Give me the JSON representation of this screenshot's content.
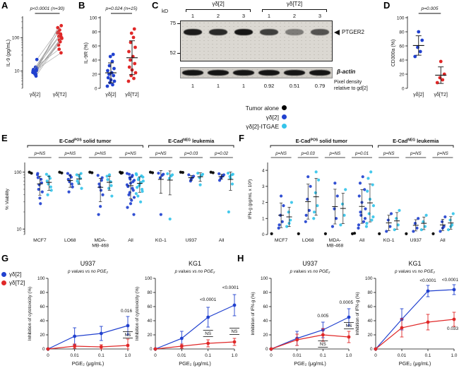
{
  "legends": {
    "tumor": {
      "items": [
        {
          "label": "Tumor alone",
          "color": "#000000"
        },
        {
          "label": "γδ[2]",
          "color": "#2141cf"
        },
        {
          "label": "γδ[2]-ITGAE",
          "color": "#35c4ea"
        }
      ]
    },
    "gh": {
      "items": [
        {
          "label": "γδ[2]",
          "color": "#2141cf"
        },
        {
          "label": "γδ[T2]",
          "color": "#e02828"
        }
      ]
    }
  },
  "chart_data": [
    {
      "panel": "A",
      "type": "paired-scatter",
      "p_label": "p<0.0001 (n=30)",
      "ylabel": "IL-9 (pg/mL)",
      "yscale": "log",
      "ylim": [
        3,
        400
      ],
      "yticks": [
        10,
        100
      ],
      "categories": [
        "γδ[2]",
        "γδ[T2]"
      ],
      "colors": [
        "#2141cf",
        "#e02828"
      ],
      "pairs": [
        [
          9,
          120
        ],
        [
          7,
          95
        ],
        [
          10,
          150
        ],
        [
          12,
          60
        ],
        [
          8,
          200
        ],
        [
          11,
          110
        ],
        [
          10,
          85
        ],
        [
          9,
          140
        ],
        [
          13,
          45
        ],
        [
          10,
          170
        ],
        [
          22,
          230
        ],
        [
          9,
          75
        ],
        [
          8,
          100
        ],
        [
          10,
          130
        ],
        [
          11,
          35
        ]
      ]
    },
    {
      "panel": "B",
      "type": "scatter",
      "p_label": "p=0.024 (n=15)",
      "ylabel": "IL-9R (%)",
      "yscale": "linear",
      "ylim": [
        0,
        100
      ],
      "yticks": [
        0,
        20,
        40,
        60,
        80,
        100
      ],
      "categories": [
        "γδ[2]",
        "γδ[T2]"
      ],
      "colors": [
        "#2141cf",
        "#e02828"
      ],
      "values": [
        [
          3,
          5,
          8,
          10,
          12,
          15,
          18,
          20,
          22,
          25,
          28,
          32,
          38,
          45,
          48
        ],
        [
          10,
          14,
          18,
          22,
          26,
          30,
          35,
          40,
          45,
          52,
          58,
          65,
          72,
          78,
          84
        ]
      ]
    },
    {
      "panel": "C",
      "type": "western-blot",
      "kd_label": "kD",
      "markers": [
        {
          "label": "75",
          "y": 30
        },
        {
          "label": "52",
          "y": 72
        }
      ],
      "group_labels": [
        "γδ[2]",
        "γδ[T2]"
      ],
      "lane_numbers": [
        "1",
        "2",
        "3",
        "1",
        "2",
        "3"
      ],
      "band_label": "PTGER2",
      "actin_label": "β-actin",
      "density_caption": [
        "Pixel density",
        "relative to gd[2]"
      ],
      "densities": [
        "1",
        "1",
        "1",
        "0.92",
        "0.51",
        "0.79"
      ],
      "band_intensities": [
        0.92,
        0.85,
        0.95,
        0.75,
        0.45,
        0.65
      ]
    },
    {
      "panel": "D",
      "type": "scatter",
      "p_label": "p=0.005",
      "ylabel": "CD300a (%)",
      "yscale": "linear",
      "ylim": [
        0,
        100
      ],
      "yticks": [
        0,
        20,
        40,
        60,
        80,
        100
      ],
      "categories": [
        "γδ[2]",
        "γδ[T2]"
      ],
      "colors": [
        "#2141cf",
        "#e02828"
      ],
      "values": [
        [
          45,
          52,
          58,
          68,
          80
        ],
        [
          8,
          12,
          15,
          20,
          38
        ]
      ]
    },
    {
      "panel": "E",
      "type": "grouped-scatter",
      "ylabel": "% Viability",
      "yscale": "log",
      "ylim": [
        8,
        140
      ],
      "yticks": [
        10,
        100
      ],
      "series": [
        "Tumor alone",
        "γδ[2]",
        "γδ[2]-ITGAE"
      ],
      "series_colors": [
        "#000000",
        "#2141cf",
        "#35c4ea"
      ],
      "groups": [
        {
          "prefix": "E-Cad",
          "sup": "POS",
          "suffix": " solid tumor",
          "from": 0,
          "to": 3
        },
        {
          "prefix": "E-Cad",
          "sup": "NEG",
          "suffix": " leukemia",
          "from": 4,
          "to": 6
        }
      ],
      "categories": [
        {
          "label": "MCF7",
          "p": "p=NS"
        },
        {
          "label": "LO68",
          "p": "p=NS"
        },
        {
          "label": "MDA-\nMB-468",
          "p": "p=NS"
        },
        {
          "label": "All",
          "p": "p=NS"
        },
        {
          "label": "KG-1",
          "p": "p=NS"
        },
        {
          "label": "U937",
          "p": "p=0.03"
        },
        {
          "label": "All",
          "p": "p=0.02"
        }
      ],
      "data": [
        {
          "tumor": [
            100,
            96
          ],
          "gd2": [
            90,
            75,
            60,
            45,
            35,
            80,
            65,
            50,
            28,
            95
          ],
          "itgae": [
            92,
            78,
            62,
            48,
            85,
            70,
            55,
            40
          ]
        },
        {
          "tumor": [
            100,
            97
          ],
          "gd2": [
            95,
            82,
            68,
            55,
            88,
            75,
            62,
            45
          ],
          "itgae": [
            90,
            78,
            64,
            52,
            85,
            70,
            95
          ]
        },
        {
          "tumor": [
            100,
            98
          ],
          "gd2": [
            88,
            72,
            55,
            40,
            25,
            18,
            80,
            62,
            48
          ],
          "itgae": [
            85,
            68,
            52,
            38,
            90,
            74,
            58
          ]
        },
        {
          "tumor": [
            100,
            98,
            96
          ],
          "gd2": [
            95,
            88,
            80,
            72,
            64,
            56,
            48,
            40,
            32,
            24,
            18,
            92,
            84,
            76,
            68,
            60,
            52,
            44,
            36,
            28
          ],
          "itgae": [
            94,
            86,
            78,
            70,
            62,
            54,
            46,
            38,
            30,
            90,
            82,
            74,
            66,
            58,
            50,
            42
          ]
        },
        {
          "tumor": [
            100,
            98
          ],
          "gd2": [
            96,
            88,
            80,
            92,
            18
          ],
          "itgae": [
            94,
            86,
            78,
            90,
            15
          ]
        },
        {
          "tumor": [
            100,
            99
          ],
          "gd2": [
            90,
            80,
            70,
            85,
            75
          ],
          "itgae": [
            96,
            88,
            80,
            92,
            60
          ]
        },
        {
          "tumor": [
            100,
            98
          ],
          "gd2": [
            94,
            86,
            78,
            90,
            82,
            72
          ],
          "itgae": [
            96,
            90,
            84,
            92,
            78,
            20,
            62
          ]
        }
      ]
    },
    {
      "panel": "F",
      "type": "grouped-scatter",
      "ylabel": "IFN-g (pg/mL x 10³)",
      "yscale": "linear",
      "ylim": [
        0,
        4.4
      ],
      "yticks": [
        0,
        1,
        2,
        3,
        4
      ],
      "series": [
        "Tumor alone",
        "γδ[2]",
        "γδ[2]-ITGAE"
      ],
      "series_colors": [
        "#000000",
        "#2141cf",
        "#35c4ea"
      ],
      "groups": [
        {
          "prefix": "E-Cad",
          "sup": "POS",
          "suffix": " solid tumor",
          "from": 0,
          "to": 3
        },
        {
          "prefix": "E-Cad",
          "sup": "NEG",
          "suffix": " leukemia",
          "from": 4,
          "to": 6
        }
      ],
      "categories": [
        {
          "label": "MCF7",
          "p": "p=NS"
        },
        {
          "label": "LO68",
          "p": "p=0.03"
        },
        {
          "label": "MDA-\nMB-468",
          "p": "p=NS"
        },
        {
          "label": "All",
          "p": "p=0.01"
        },
        {
          "label": "KG-1",
          "p": "p=NS"
        },
        {
          "label": "U937",
          "p": "p=NS"
        },
        {
          "label": "All",
          "p": "p=NS"
        }
      ],
      "data": [
        {
          "tumor": [
            0.05
          ],
          "gd2": [
            0.4,
            0.8,
            1.2,
            1.8,
            2.4,
            0.6
          ],
          "itgae": [
            0.5,
            0.9,
            1.4,
            2.0,
            0.7
          ]
        },
        {
          "tumor": [
            0.05
          ],
          "gd2": [
            0.8,
            1.5,
            2.2,
            3.0,
            3.6,
            1.2
          ],
          "itgae": [
            1.0,
            1.8,
            2.6,
            3.4,
            3.9,
            1.4
          ]
        },
        {
          "tumor": [
            0.05
          ],
          "gd2": [
            0.5,
            1.0,
            1.6,
            2.4,
            3.2
          ],
          "itgae": [
            0.6,
            1.2,
            1.9,
            2.8
          ]
        },
        {
          "tumor": [
            0.05,
            0.08
          ],
          "gd2": [
            0.4,
            0.8,
            1.2,
            1.6,
            2.0,
            2.4,
            2.8,
            3.2,
            3.6,
            0.6,
            1.0,
            1.4
          ],
          "itgae": [
            0.5,
            0.9,
            1.3,
            1.8,
            2.2,
            2.7,
            3.1,
            3.5,
            3.9,
            0.7,
            1.1
          ]
        },
        {
          "tumor": [
            0.05
          ],
          "gd2": [
            0.2,
            0.5,
            0.9,
            1.3
          ],
          "itgae": [
            0.3,
            0.6,
            1.0,
            1.5
          ]
        },
        {
          "tumor": [
            0.05
          ],
          "gd2": [
            0.2,
            0.4,
            0.7,
            1.0
          ],
          "itgae": [
            0.3,
            0.5,
            0.8,
            1.2
          ]
        },
        {
          "tumor": [
            0.05
          ],
          "gd2": [
            0.2,
            0.5,
            0.8,
            1.1,
            0.4
          ],
          "itgae": [
            0.3,
            0.6,
            0.9,
            1.3,
            0.5
          ]
        }
      ]
    },
    {
      "panel": "G",
      "type": "line",
      "ylabel": "Inhibition of cytotoxicity (%)",
      "xlabel": "PGE₂ (μg/mL)",
      "note": "p values vs no PGE₂",
      "xticklabels": [
        "0",
        "0.01",
        "0.1",
        "1.0"
      ],
      "ylim": [
        0,
        100
      ],
      "yticks": [
        0,
        20,
        40,
        60,
        80,
        100
      ],
      "series_colors": [
        "#2141cf",
        "#e02828"
      ],
      "subplots": [
        {
          "title": "U937",
          "series": [
            {
              "name": "γδ[2]",
              "y": [
                0,
                18,
                22,
                33
              ],
              "err": [
                0,
                12,
                10,
                13
              ]
            },
            {
              "name": "γδ[T2]",
              "y": [
                0,
                4,
                3,
                5
              ],
              "err": [
                0,
                3,
                3,
                9
              ]
            }
          ],
          "annotations": [
            {
              "xi": 3,
              "y": 52,
              "text": "0.016"
            },
            {
              "xi": 3,
              "y": 18,
              "text": "NS",
              "bracket": true
            }
          ]
        },
        {
          "title": "KG1",
          "series": [
            {
              "name": "γδ[2]",
              "y": [
                0,
                15,
                45,
                62
              ],
              "err": [
                0,
                10,
                14,
                15
              ]
            },
            {
              "name": "γδ[T2]",
              "y": [
                0,
                4,
                8,
                10
              ],
              "err": [
                0,
                3,
                5,
                5
              ]
            }
          ],
          "annotations": [
            {
              "xi": 2,
              "y": 68,
              "text": "<0.0001"
            },
            {
              "xi": 3,
              "y": 85,
              "text": "<0.0001"
            },
            {
              "xi": 2,
              "y": 20,
              "text": "NS",
              "bracket": true
            },
            {
              "xi": 3,
              "y": 23,
              "text": "NS",
              "bracket": true
            }
          ]
        }
      ]
    },
    {
      "panel": "H",
      "type": "line",
      "ylabel": "Inhibition of IFN-g (%)",
      "xlabel": "PGE₂ (μg/mL)",
      "note": "p values vs no PGE₂",
      "xticklabels": [
        "0",
        "0.01",
        "0.1",
        "1.0"
      ],
      "ylim": [
        0,
        100
      ],
      "yticks": [
        0,
        20,
        40,
        60,
        80,
        100
      ],
      "series_colors": [
        "#2141cf",
        "#e02828"
      ],
      "subplots": [
        {
          "title": "U937",
          "series": [
            {
              "name": "γδ[2]",
              "y": [
                0,
                15,
                27,
                45
              ],
              "err": [
                0,
                10,
                11,
                12
              ]
            },
            {
              "name": "γδ[T2]",
              "y": [
                0,
                13,
                20,
                17
              ],
              "err": [
                0,
                8,
                9,
                8
              ]
            }
          ],
          "annotations": [
            {
              "xi": 2,
              "y": 45,
              "text": "0.005"
            },
            {
              "xi": 3,
              "y": 64,
              "text": "0.0005"
            },
            {
              "xi": 2,
              "y": 5,
              "text": "NS",
              "bracket": true
            },
            {
              "xi": 3,
              "y": 31,
              "text": "NS",
              "bracket": true
            }
          ]
        },
        {
          "title": "KG1",
          "series": [
            {
              "name": "γδ[2]",
              "y": [
                0,
                42,
                82,
                84
              ],
              "err": [
                0,
                15,
                8,
                7
              ]
            },
            {
              "name": "γδ[T2]",
              "y": [
                0,
                30,
                38,
                42
              ],
              "err": [
                0,
                13,
                11,
                10
              ]
            }
          ],
          "annotations": [
            {
              "xi": 2,
              "y": 95,
              "text": "<0.0001"
            },
            {
              "xi": 3,
              "y": 96,
              "text": "<0.0001"
            },
            {
              "xi": 3,
              "y": 27,
              "text": "0.033"
            }
          ]
        }
      ]
    }
  ]
}
